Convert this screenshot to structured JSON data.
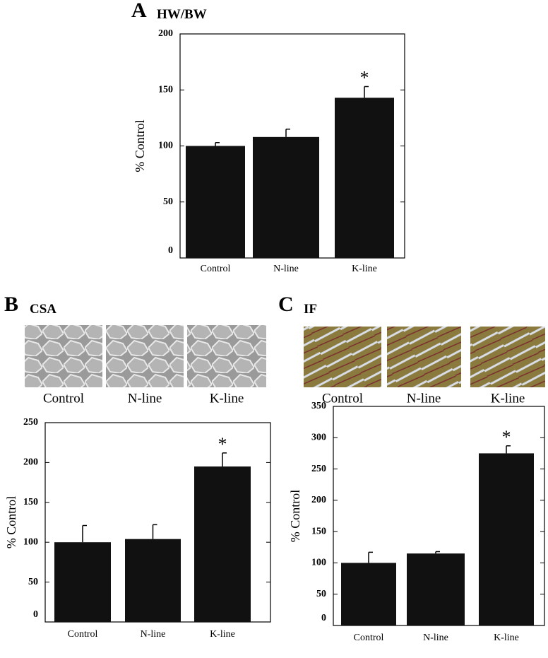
{
  "chart_data": [
    {
      "type": "bar",
      "panel": "A",
      "title": "HW/BW",
      "ylabel": "% Control",
      "categories": [
        "Control",
        "N-line",
        "K-line"
      ],
      "values": [
        100,
        108,
        143
      ],
      "errors": [
        3,
        7,
        10
      ],
      "color": "#111111",
      "ylim": [
        0,
        200
      ],
      "yticks": [
        0,
        50,
        100,
        150,
        200
      ],
      "annotations": [
        {
          "text": "*",
          "x": "K-line"
        }
      ]
    },
    {
      "type": "bar",
      "panel": "B",
      "title": "CSA",
      "ylabel": "% Control",
      "image_labels": [
        "Control",
        "N-line",
        "K-line"
      ],
      "categories": [
        "Control",
        "N-line",
        "K-line"
      ],
      "values": [
        100,
        104,
        195
      ],
      "errors": [
        21,
        18,
        17
      ],
      "color": "#111111",
      "ylim": [
        0,
        250
      ],
      "yticks": [
        0,
        50,
        100,
        150,
        200,
        250
      ],
      "annotations": [
        {
          "text": "*",
          "x": "K-line"
        }
      ]
    },
    {
      "type": "bar",
      "panel": "C",
      "title": "IF",
      "ylabel": "% Control",
      "image_labels": [
        "Control",
        "N-line",
        "K-line"
      ],
      "categories": [
        "Control",
        "N-line",
        "K-line"
      ],
      "values": [
        100,
        115,
        275
      ],
      "errors": [
        17,
        3,
        12
      ],
      "color": "#111111",
      "ylim": [
        0,
        350
      ],
      "yticks": [
        0,
        50,
        100,
        150,
        200,
        250,
        300,
        350
      ],
      "annotations": [
        {
          "text": "*",
          "x": "K-line"
        }
      ]
    }
  ]
}
